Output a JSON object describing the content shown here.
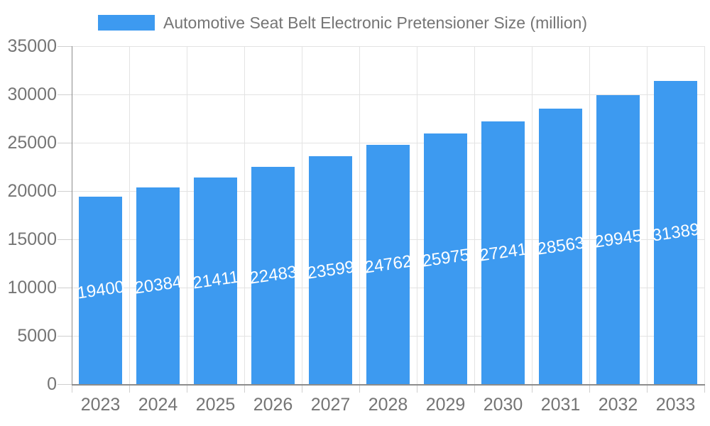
{
  "legend": {
    "label": "Automotive Seat Belt Electronic Pretensioner Size (million)"
  },
  "chart_data": {
    "type": "bar",
    "title": "Automotive Seat Belt Electronic Pretensioner Size (million)",
    "categories": [
      "2023",
      "2024",
      "2025",
      "2026",
      "2027",
      "2028",
      "2029",
      "2030",
      "2031",
      "2032",
      "2033"
    ],
    "values": [
      19400,
      20384,
      21411,
      22483,
      23599,
      24762,
      25975,
      27241,
      28563,
      29945,
      31389
    ],
    "bar_labels": [
      "19400",
      "20384",
      "21411",
      "22483",
      "23599",
      "24762",
      "25975",
      "27241",
      "28563",
      "29945",
      "31389"
    ],
    "xlabel": "",
    "ylabel": "",
    "ylim": [
      0,
      35000
    ],
    "ytick_step": 5000,
    "ytick_labels": [
      "0",
      "5000",
      "10000",
      "15000",
      "20000",
      "25000",
      "30000",
      "35000"
    ],
    "grid": true,
    "legend_position": "top"
  },
  "colors": {
    "bar": "#3d9af0",
    "grid": "#e3e3e3",
    "axis": "#8c8c8c",
    "tick": "#cfcfcf",
    "text": "#757575",
    "bar_label": "#ffffff",
    "background": "#ffffff"
  }
}
